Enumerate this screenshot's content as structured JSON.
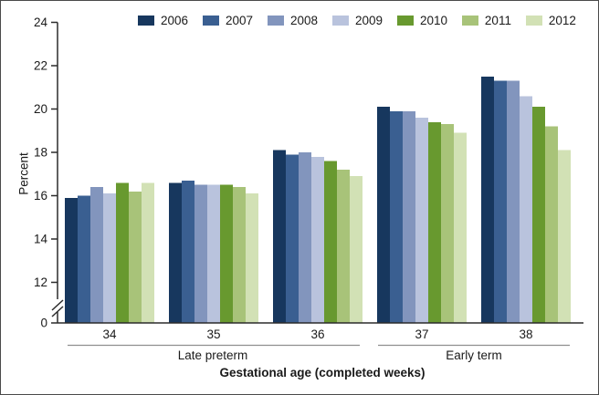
{
  "chart_data": {
    "type": "bar",
    "title": "",
    "ylabel": "Percent",
    "xlabel": "Gestational age (completed weeks)",
    "legend_position": "top",
    "grid": false,
    "y_axis_break_between": [
      0,
      12
    ],
    "ylim_visible": [
      12,
      24
    ],
    "y_ticks": [
      0,
      12,
      14,
      16,
      18,
      20,
      22,
      24
    ],
    "categories": [
      "34",
      "35",
      "36",
      "37",
      "38"
    ],
    "category_groups": [
      {
        "label": "Late preterm",
        "span": [
          "34",
          "36"
        ]
      },
      {
        "label": "Early term",
        "span": [
          "37",
          "38"
        ]
      }
    ],
    "series": [
      {
        "name": "2006",
        "color": "#17375E",
        "values": [
          15.9,
          16.6,
          18.1,
          20.1,
          21.5
        ]
      },
      {
        "name": "2007",
        "color": "#3A5F91",
        "values": [
          16.0,
          16.7,
          17.9,
          19.9,
          21.3
        ]
      },
      {
        "name": "2008",
        "color": "#8295BD",
        "values": [
          16.4,
          16.5,
          18.0,
          19.9,
          21.3
        ]
      },
      {
        "name": "2009",
        "color": "#B9C3DD",
        "values": [
          16.1,
          16.5,
          17.8,
          19.6,
          20.6
        ]
      },
      {
        "name": "2010",
        "color": "#68992F",
        "values": [
          16.6,
          16.5,
          17.6,
          19.4,
          20.1
        ]
      },
      {
        "name": "2011",
        "color": "#A8C379",
        "values": [
          16.2,
          16.4,
          17.2,
          19.3,
          19.2
        ]
      },
      {
        "name": "2012",
        "color": "#D2E1B5",
        "values": [
          16.6,
          16.1,
          16.9,
          18.9,
          18.1
        ]
      }
    ]
  }
}
